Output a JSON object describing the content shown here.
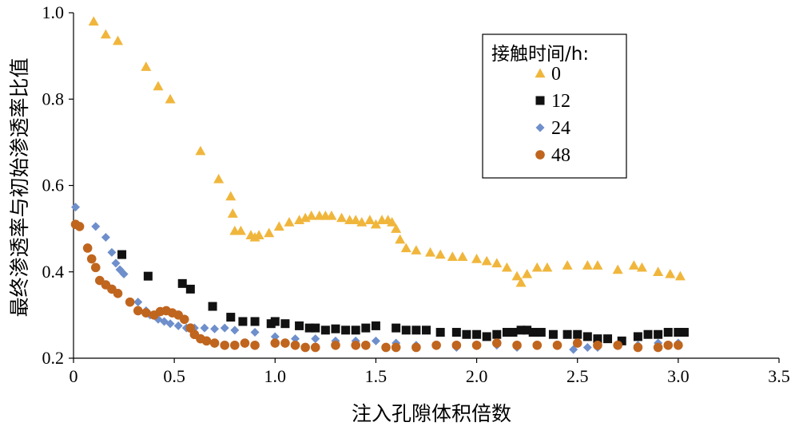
{
  "chart_data": {
    "type": "scatter",
    "xlabel": "注入孔隙体积倍数",
    "ylabel": "最终渗透率与初始渗透率比值",
    "xlim": [
      0,
      3.5
    ],
    "ylim": [
      0.2,
      1.0
    ],
    "xticks": [
      "0",
      "0.5",
      "1.0",
      "1.5",
      "2.0",
      "2.5",
      "3.0",
      "3.5"
    ],
    "xtick_values": [
      0,
      0.5,
      1.0,
      1.5,
      2.0,
      2.5,
      3.0,
      3.5
    ],
    "yticks": [
      "0.2",
      "0.4",
      "0.6",
      "0.8",
      "1.0"
    ],
    "ytick_values": [
      0.2,
      0.4,
      0.6,
      0.8,
      1.0
    ],
    "grid": false,
    "legend": {
      "title": "接触时间/h:",
      "placement": "top-right"
    },
    "series": [
      {
        "name": "0",
        "marker": "triangle",
        "color": "#F0B63C",
        "x": [
          0.1,
          0.16,
          0.22,
          0.36,
          0.42,
          0.48,
          0.63,
          0.72,
          0.78,
          0.79,
          0.8,
          0.83,
          0.88,
          0.9,
          0.92,
          0.97,
          1.02,
          1.07,
          1.12,
          1.15,
          1.18,
          1.22,
          1.25,
          1.28,
          1.33,
          1.37,
          1.4,
          1.43,
          1.47,
          1.5,
          1.53,
          1.56,
          1.58,
          1.6,
          1.62,
          1.65,
          1.7,
          1.77,
          1.82,
          1.88,
          1.93,
          2.0,
          2.05,
          2.1,
          2.15,
          2.2,
          2.22,
          2.25,
          2.3,
          2.35,
          2.45,
          2.55,
          2.6,
          2.7,
          2.78,
          2.82,
          2.9,
          2.96,
          3.01
        ],
        "y": [
          0.98,
          0.95,
          0.935,
          0.875,
          0.83,
          0.8,
          0.68,
          0.615,
          0.575,
          0.535,
          0.495,
          0.495,
          0.485,
          0.48,
          0.485,
          0.49,
          0.505,
          0.515,
          0.52,
          0.525,
          0.53,
          0.53,
          0.53,
          0.53,
          0.525,
          0.52,
          0.52,
          0.515,
          0.52,
          0.51,
          0.52,
          0.52,
          0.515,
          0.5,
          0.475,
          0.455,
          0.45,
          0.445,
          0.44,
          0.435,
          0.435,
          0.43,
          0.425,
          0.42,
          0.41,
          0.39,
          0.375,
          0.395,
          0.41,
          0.41,
          0.415,
          0.415,
          0.415,
          0.405,
          0.415,
          0.41,
          0.4,
          0.395,
          0.39
        ]
      },
      {
        "name": "12",
        "marker": "square",
        "color": "#111111",
        "x": [
          0.24,
          0.37,
          0.54,
          0.58,
          0.69,
          0.78,
          0.84,
          0.9,
          0.98,
          1.0,
          1.05,
          1.12,
          1.17,
          1.2,
          1.25,
          1.3,
          1.35,
          1.4,
          1.45,
          1.5,
          1.6,
          1.65,
          1.7,
          1.75,
          1.82,
          1.9,
          1.95,
          2.0,
          2.05,
          2.1,
          2.15,
          2.18,
          2.22,
          2.25,
          2.28,
          2.32,
          2.38,
          2.45,
          2.5,
          2.55,
          2.6,
          2.65,
          2.72,
          2.8,
          2.85,
          2.9,
          2.95,
          3.0,
          3.03
        ],
        "y": [
          0.44,
          0.39,
          0.373,
          0.36,
          0.32,
          0.295,
          0.285,
          0.285,
          0.28,
          0.285,
          0.28,
          0.275,
          0.27,
          0.27,
          0.265,
          0.268,
          0.265,
          0.265,
          0.27,
          0.275,
          0.27,
          0.265,
          0.265,
          0.265,
          0.26,
          0.26,
          0.255,
          0.255,
          0.25,
          0.255,
          0.26,
          0.26,
          0.265,
          0.265,
          0.26,
          0.26,
          0.255,
          0.255,
          0.255,
          0.25,
          0.245,
          0.245,
          0.24,
          0.25,
          0.255,
          0.255,
          0.26,
          0.26,
          0.26
        ]
      },
      {
        "name": "24",
        "marker": "diamond",
        "color": "#6E8FCB",
        "x": [
          0.01,
          0.11,
          0.16,
          0.19,
          0.21,
          0.23,
          0.25,
          0.32,
          0.36,
          0.38,
          0.42,
          0.45,
          0.48,
          0.52,
          0.56,
          0.6,
          0.65,
          0.7,
          0.75,
          0.8,
          0.9,
          1.0,
          1.1,
          1.2,
          1.3,
          1.4,
          1.5,
          1.6,
          1.7,
          1.8,
          1.9,
          2.0,
          2.1,
          2.2,
          2.3,
          2.4,
          2.48,
          2.55,
          2.6,
          2.7,
          2.8,
          2.9,
          3.0
        ],
        "y": [
          0.55,
          0.505,
          0.48,
          0.445,
          0.42,
          0.405,
          0.395,
          0.33,
          0.31,
          0.3,
          0.29,
          0.285,
          0.28,
          0.275,
          0.27,
          0.27,
          0.27,
          0.268,
          0.27,
          0.265,
          0.26,
          0.25,
          0.245,
          0.245,
          0.24,
          0.24,
          0.24,
          0.235,
          0.23,
          0.23,
          0.225,
          0.23,
          0.23,
          0.225,
          0.23,
          0.23,
          0.22,
          0.225,
          0.225,
          0.23,
          0.23,
          0.235,
          0.235
        ]
      },
      {
        "name": "48",
        "marker": "circle",
        "color": "#C0651E",
        "x": [
          0.01,
          0.03,
          0.07,
          0.09,
          0.11,
          0.13,
          0.16,
          0.19,
          0.22,
          0.28,
          0.32,
          0.36,
          0.4,
          0.43,
          0.46,
          0.49,
          0.52,
          0.55,
          0.58,
          0.6,
          0.63,
          0.66,
          0.7,
          0.75,
          0.8,
          0.85,
          0.9,
          1.0,
          1.05,
          1.1,
          1.15,
          1.2,
          1.3,
          1.4,
          1.45,
          1.55,
          1.6,
          1.7,
          1.8,
          1.9,
          2.0,
          2.1,
          2.2,
          2.3,
          2.4,
          2.5,
          2.6,
          2.7,
          2.8,
          2.9,
          2.95,
          3.0
        ],
        "y": [
          0.51,
          0.505,
          0.455,
          0.43,
          0.41,
          0.38,
          0.37,
          0.36,
          0.35,
          0.33,
          0.31,
          0.305,
          0.3,
          0.308,
          0.31,
          0.305,
          0.3,
          0.29,
          0.27,
          0.255,
          0.245,
          0.24,
          0.235,
          0.23,
          0.23,
          0.235,
          0.23,
          0.235,
          0.235,
          0.23,
          0.225,
          0.225,
          0.23,
          0.23,
          0.23,
          0.225,
          0.225,
          0.225,
          0.23,
          0.23,
          0.23,
          0.235,
          0.23,
          0.23,
          0.23,
          0.235,
          0.23,
          0.23,
          0.225,
          0.225,
          0.23,
          0.23
        ]
      }
    ]
  }
}
